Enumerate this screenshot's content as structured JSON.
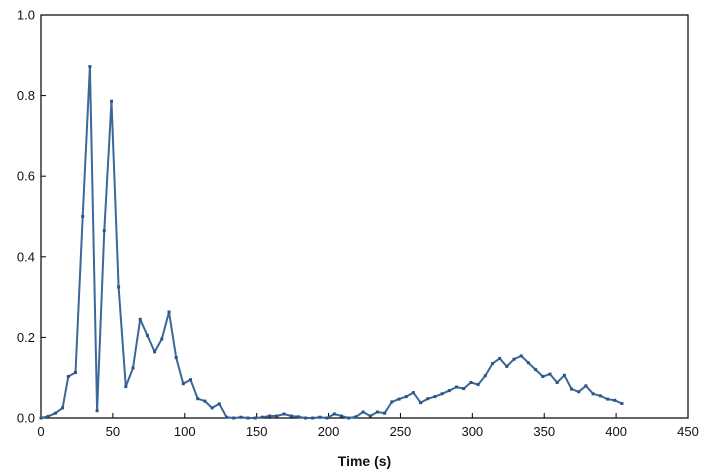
{
  "chart_data": {
    "type": "line",
    "title": "",
    "xlabel": "Time (s)",
    "ylabel": "",
    "xlim": [
      0,
      450
    ],
    "ylim": [
      0,
      1.0
    ],
    "x_ticks": [
      0,
      50,
      100,
      150,
      200,
      250,
      300,
      350,
      400,
      450
    ],
    "y_ticks": [
      0.0,
      0.2,
      0.4,
      0.6,
      0.8,
      1.0
    ],
    "x_tick_labels": [
      "0",
      "50",
      "100",
      "150",
      "200",
      "250",
      "300",
      "350",
      "400",
      "450"
    ],
    "y_tick_labels": [
      "0.0",
      "0.2",
      "0.4",
      "0.6",
      "0.8",
      "1.0"
    ],
    "grid": false,
    "legend": "none",
    "colors": {
      "line": "#3a6898",
      "marker": "#2b5584",
      "axis": "#000000"
    },
    "series": [
      {
        "x": [
          0,
          5,
          10,
          15,
          19,
          24,
          29,
          34,
          39,
          44,
          49,
          54,
          59,
          64,
          69,
          74,
          79,
          84,
          89,
          94,
          99,
          104,
          109,
          114,
          119,
          124,
          129,
          134,
          139,
          144,
          149,
          154,
          159,
          164,
          169,
          174,
          179,
          184,
          189,
          194,
          199,
          204,
          209,
          214,
          219,
          224,
          229,
          234,
          239,
          244,
          249,
          254,
          259,
          264,
          269,
          274,
          279,
          284,
          289,
          294,
          299,
          304,
          309,
          314,
          319,
          324,
          329,
          334,
          339,
          344,
          349,
          354,
          359,
          364,
          369,
          374,
          379,
          384,
          389,
          394,
          399,
          404
        ],
        "y": [
          0.0,
          0.004,
          0.012,
          0.025,
          0.103,
          0.113,
          0.5,
          0.872,
          0.018,
          0.465,
          0.786,
          0.325,
          0.078,
          0.124,
          0.245,
          0.205,
          0.164,
          0.196,
          0.263,
          0.15,
          0.085,
          0.095,
          0.048,
          0.042,
          0.025,
          0.035,
          0.002,
          0.0,
          0.002,
          0.0,
          0.0,
          0.002,
          0.005,
          0.005,
          0.01,
          0.005,
          0.003,
          0.0,
          0.0,
          0.002,
          0.0,
          0.01,
          0.005,
          0.0,
          0.003,
          0.015,
          0.005,
          0.015,
          0.012,
          0.04,
          0.047,
          0.053,
          0.063,
          0.038,
          0.048,
          0.053,
          0.06,
          0.068,
          0.077,
          0.073,
          0.088,
          0.083,
          0.105,
          0.135,
          0.148,
          0.128,
          0.146,
          0.154,
          0.137,
          0.12,
          0.103,
          0.109,
          0.088,
          0.106,
          0.072,
          0.065,
          0.08,
          0.06,
          0.055,
          0.047,
          0.044,
          0.036
        ]
      }
    ]
  }
}
